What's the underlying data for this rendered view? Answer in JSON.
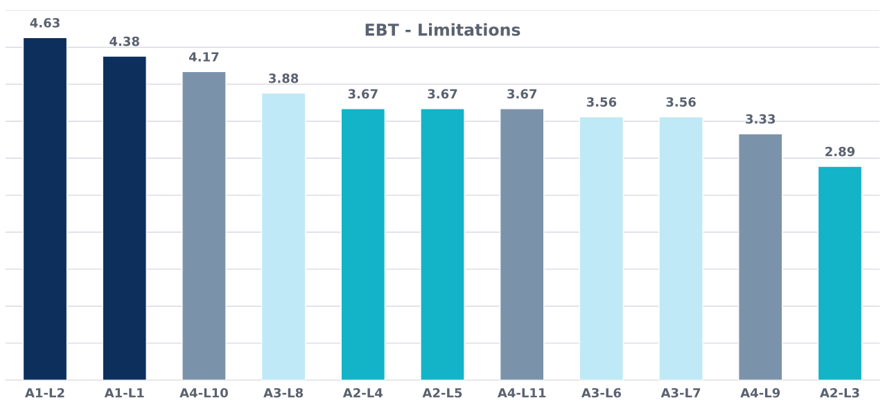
{
  "chart_data": {
    "type": "bar",
    "title": "EBT - Limitations",
    "categories": [
      "A1-L2",
      "A1-L1",
      "A4-L10",
      "A3-L8",
      "A2-L4",
      "A2-L5",
      "A4-L11",
      "A3-L6",
      "A3-L7",
      "A4-L9",
      "A2-L3"
    ],
    "values": [
      4.63,
      4.38,
      4.17,
      3.88,
      3.67,
      3.67,
      3.67,
      3.56,
      3.56,
      3.33,
      2.89
    ],
    "colors": [
      "#0d2f5c",
      "#0d2f5c",
      "#7b93aa",
      "#bfe9f6",
      "#13b3c8",
      "#13b3c8",
      "#7b93aa",
      "#bfe9f6",
      "#bfe9f6",
      "#7b93aa",
      "#13b3c8"
    ],
    "ylim": [
      0,
      5
    ],
    "yticks": [
      {
        "value": 0,
        "label": null
      },
      {
        "value": 0.5,
        "label": null
      },
      {
        "value": 1,
        "label": null
      },
      {
        "value": 1.5,
        "label": null
      },
      {
        "value": 2,
        "label": null
      },
      {
        "value": 2.5,
        "label": null
      },
      {
        "value": 3,
        "label": null
      },
      {
        "value": 3.5,
        "label": null
      },
      {
        "value": 4,
        "label": null
      },
      {
        "value": 4.5,
        "label": null
      },
      {
        "value": 5,
        "label": null
      }
    ],
    "grid": "y",
    "tick_labels": "x",
    "data_labels": true
  }
}
